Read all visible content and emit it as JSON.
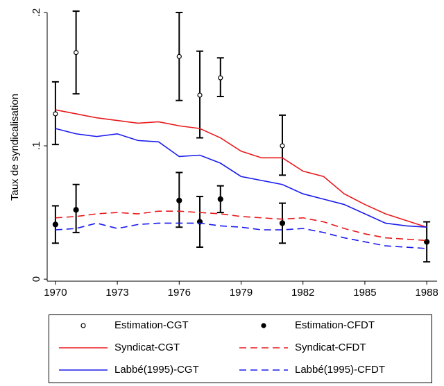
{
  "chart_data": {
    "type": "line",
    "y_label": "Taux de syndicalisation",
    "xlim": [
      1969.6,
      1988.5
    ],
    "xticks": [
      1970,
      1973,
      1976,
      1979,
      1982,
      1985,
      1988
    ],
    "ylim": [
      -0.0015,
      0.2
    ],
    "yticks": [
      {
        "value": 0,
        "label": "0"
      },
      {
        "value": 0.1,
        "label": ".1"
      },
      {
        "value": 0.2,
        "label": ".2"
      }
    ],
    "legend": "bottom",
    "series": [
      {
        "name": "Estimation-CGT",
        "color": "#000000",
        "marker": "hollow",
        "x": [
          1970,
          1971,
          1976,
          1977,
          1978,
          1981
        ],
        "values": [
          0.124,
          0.17,
          0.167,
          0.138,
          0.151,
          0.1
        ],
        "lower": [
          0.101,
          0.139,
          0.134,
          0.106,
          0.137,
          0.078
        ],
        "upper": [
          0.148,
          0.201,
          0.2,
          0.171,
          0.166,
          0.123
        ]
      },
      {
        "name": "Estimation-CFDT",
        "color": "#000000",
        "marker": "filled",
        "x": [
          1970,
          1971,
          1976,
          1977,
          1978,
          1981,
          1988
        ],
        "values": [
          0.041,
          0.052,
          0.059,
          0.043,
          0.06,
          0.042,
          0.028
        ],
        "lower": [
          0.027,
          0.035,
          0.039,
          0.024,
          0.05,
          0.027,
          0.013
        ],
        "upper": [
          0.055,
          0.071,
          0.08,
          0.062,
          0.07,
          0.057,
          0.043
        ]
      },
      {
        "name": "Syndicat-CGT",
        "color": "#e8191c",
        "dash": false,
        "x": [
          1970,
          1971,
          1972,
          1973,
          1974,
          1975,
          1976,
          1977,
          1978,
          1979,
          1980,
          1981,
          1982,
          1983,
          1984,
          1985,
          1986,
          1987,
          1988
        ],
        "values": [
          0.127,
          0.124,
          0.121,
          0.119,
          0.117,
          0.118,
          0.115,
          0.113,
          0.106,
          0.096,
          0.091,
          0.091,
          0.081,
          0.077,
          0.064,
          0.056,
          0.049,
          0.044,
          0.039
        ]
      },
      {
        "name": "Syndicat-CFDT",
        "color": "#e8191c",
        "dash": true,
        "x": [
          1970,
          1971,
          1972,
          1973,
          1974,
          1975,
          1976,
          1977,
          1978,
          1979,
          1980,
          1981,
          1982,
          1983,
          1984,
          1985,
          1986,
          1987,
          1988
        ],
        "values": [
          0.046,
          0.047,
          0.049,
          0.05,
          0.049,
          0.051,
          0.051,
          0.05,
          0.049,
          0.047,
          0.046,
          0.045,
          0.046,
          0.043,
          0.038,
          0.034,
          0.031,
          0.03,
          0.029
        ]
      },
      {
        "name": "Labbé(1995)-CGT",
        "color": "#1a1aee",
        "dash": false,
        "x": [
          1970,
          1971,
          1972,
          1973,
          1974,
          1975,
          1976,
          1977,
          1978,
          1979,
          1980,
          1981,
          1982,
          1983,
          1984,
          1985,
          1986,
          1987,
          1988
        ],
        "values": [
          0.113,
          0.109,
          0.107,
          0.109,
          0.104,
          0.103,
          0.092,
          0.093,
          0.087,
          0.077,
          0.074,
          0.071,
          0.064,
          0.06,
          0.056,
          0.049,
          0.042,
          0.04,
          0.039
        ]
      },
      {
        "name": "Labbé(1995)-CFDT",
        "color": "#1a1aee",
        "dash": true,
        "x": [
          1970,
          1971,
          1972,
          1973,
          1974,
          1975,
          1976,
          1977,
          1978,
          1979,
          1980,
          1981,
          1982,
          1983,
          1984,
          1985,
          1986,
          1987,
          1988
        ],
        "values": [
          0.037,
          0.038,
          0.042,
          0.038,
          0.041,
          0.042,
          0.042,
          0.042,
          0.04,
          0.039,
          0.037,
          0.037,
          0.038,
          0.035,
          0.031,
          0.028,
          0.025,
          0.024,
          0.023
        ]
      }
    ]
  }
}
